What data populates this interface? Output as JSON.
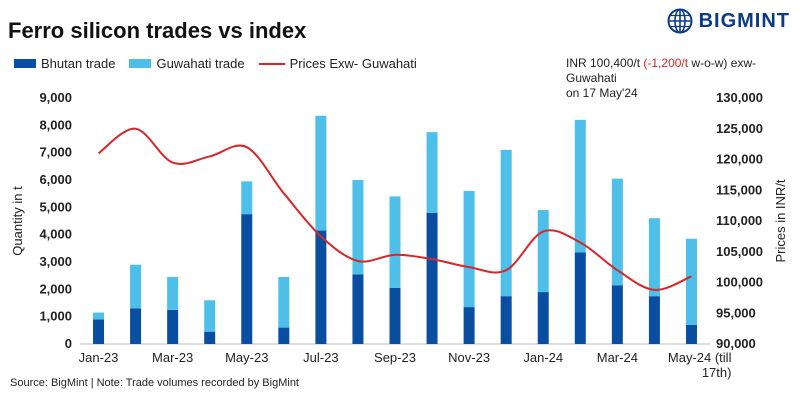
{
  "header": {
    "title": "Ferro silicon trades vs index",
    "brand": "BIGMINT"
  },
  "annotation": {
    "price_text": "INR 100,400/t",
    "change_text": "(-1,200/t",
    "change_suffix": " w-o-w)",
    "location": "exw-Guwahati",
    "date_text": "on 17 May'24"
  },
  "footer": {
    "source": "Source: BigMint | Note: Trade volumes recorded by BigMint"
  },
  "colors": {
    "bhutan": "#0a4ea2",
    "guwahati": "#4dbfe9",
    "price": "#d62728"
  },
  "chart_data": {
    "type": "bar",
    "stacked": true,
    "categories": [
      "Jan-23",
      "Feb-23",
      "Mar-23",
      "Apr-23",
      "May-23",
      "Jun-23",
      "Jul-23",
      "Aug-23",
      "Sep-23",
      "Oct-23",
      "Nov-23",
      "Dec-23",
      "Jan-24",
      "Feb-24",
      "Mar-24",
      "Apr-24",
      "May-24 (till 17th)"
    ],
    "x_tick_labels": [
      "Jan-23",
      "",
      "Mar-23",
      "",
      "May-23",
      "",
      "Jul-23",
      "",
      "Sep-23",
      "",
      "Nov-23",
      "",
      "Jan-24",
      "",
      "Mar-24",
      "",
      "May-24 (till 17th)"
    ],
    "series": [
      {
        "name": "Bhutan trade",
        "axis": "left",
        "values": [
          900,
          1300,
          1250,
          450,
          4750,
          600,
          4150,
          2550,
          2050,
          4800,
          1350,
          1750,
          1900,
          3350,
          2150,
          1750,
          700
        ]
      },
      {
        "name": "Guwahati trade",
        "axis": "left",
        "values": [
          250,
          1600,
          1200,
          1150,
          1200,
          1850,
          4200,
          3450,
          3350,
          2950,
          4250,
          5350,
          3000,
          4850,
          3900,
          2850,
          3150
        ]
      },
      {
        "name": "Prices Exw- Guwahati",
        "type": "line",
        "axis": "right",
        "values": [
          121000,
          125000,
          119500,
          120500,
          122000,
          114500,
          107500,
          103500,
          104500,
          103800,
          102500,
          102000,
          108300,
          106500,
          102000,
          98800,
          101000
        ]
      }
    ],
    "ylabel": "Quantity in t",
    "y2label": "Prices in INR/t",
    "ylim": [
      0,
      9000
    ],
    "y2lim": [
      90000,
      130000
    ],
    "y_ticks": [
      "0",
      "1,000",
      "2,000",
      "3,000",
      "4,000",
      "5,000",
      "6,000",
      "7,000",
      "8,000",
      "9,000"
    ],
    "y2_ticks": [
      "90,000",
      "95,000",
      "100,000",
      "105,000",
      "110,000",
      "115,000",
      "120,000",
      "125,000",
      "130,000"
    ],
    "grid": false,
    "legend": "top-left"
  }
}
